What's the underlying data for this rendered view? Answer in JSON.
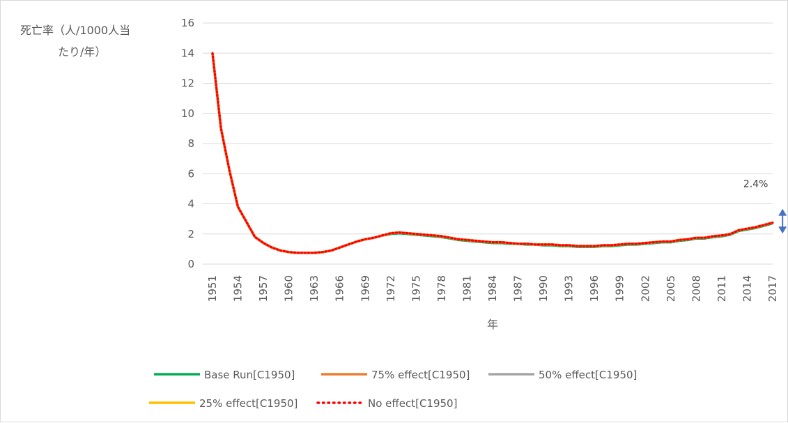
{
  "chart_data": {
    "type": "line",
    "ylabel_lines": [
      "死亡率（人/1000人当",
      "たり/年）"
    ],
    "xlabel": "年",
    "ylim": [
      0,
      16
    ],
    "y_ticks": [
      0,
      2,
      4,
      6,
      8,
      10,
      12,
      14,
      16
    ],
    "x_range": [
      1951,
      2017
    ],
    "x_tick_labels": [
      "1951",
      "1954",
      "1957",
      "1960",
      "1963",
      "1966",
      "1969",
      "1972",
      "1975",
      "1978",
      "1981",
      "1984",
      "1987",
      "1990",
      "1993",
      "1996",
      "1999",
      "2002",
      "2005",
      "2008",
      "2011",
      "2014",
      "2017"
    ],
    "grid": "horizontal",
    "legend_position": "bottom",
    "annotation": {
      "text": "2.4%",
      "x": 2015,
      "y": 5.1
    },
    "range_marker": {
      "x": 2018,
      "y_low": 2.4,
      "y_high": 3.3,
      "color": "#4472c4"
    },
    "x": [
      1951,
      1952,
      1953,
      1954,
      1955,
      1956,
      1957,
      1958,
      1959,
      1960,
      1961,
      1962,
      1963,
      1964,
      1965,
      1966,
      1967,
      1968,
      1969,
      1970,
      1971,
      1972,
      1973,
      1974,
      1975,
      1976,
      1977,
      1978,
      1979,
      1980,
      1981,
      1982,
      1983,
      1984,
      1985,
      1986,
      1987,
      1988,
      1989,
      1990,
      1991,
      1992,
      1993,
      1994,
      1995,
      1996,
      1997,
      1998,
      1999,
      2000,
      2001,
      2002,
      2003,
      2004,
      2005,
      2006,
      2007,
      2008,
      2009,
      2010,
      2011,
      2012,
      2013,
      2014,
      2015,
      2016,
      2017
    ],
    "series": [
      {
        "name": "Base Run[C1950]",
        "color": "#00b050",
        "style": "solid",
        "values": [
          14.0,
          9.0,
          6.2,
          3.8,
          2.8,
          1.8,
          1.4,
          1.1,
          0.9,
          0.8,
          0.75,
          0.75,
          0.75,
          0.8,
          0.9,
          1.1,
          1.3,
          1.5,
          1.65,
          1.75,
          1.9,
          2.0,
          2.05,
          2.0,
          1.95,
          1.9,
          1.85,
          1.8,
          1.7,
          1.6,
          1.55,
          1.5,
          1.45,
          1.4,
          1.4,
          1.35,
          1.35,
          1.3,
          1.3,
          1.25,
          1.25,
          1.2,
          1.2,
          1.15,
          1.15,
          1.15,
          1.2,
          1.2,
          1.25,
          1.3,
          1.3,
          1.35,
          1.4,
          1.45,
          1.45,
          1.55,
          1.6,
          1.7,
          1.7,
          1.8,
          1.85,
          1.95,
          2.2,
          2.3,
          2.4,
          2.55,
          2.7
        ]
      },
      {
        "name": "75% effect[C1950]",
        "color": "#ed7d31",
        "style": "solid",
        "values": [
          14.0,
          9.0,
          6.2,
          3.8,
          2.8,
          1.8,
          1.4,
          1.1,
          0.9,
          0.8,
          0.75,
          0.75,
          0.75,
          0.8,
          0.9,
          1.1,
          1.3,
          1.5,
          1.65,
          1.75,
          1.9,
          2.05,
          2.1,
          2.05,
          2.0,
          1.95,
          1.9,
          1.85,
          1.75,
          1.65,
          1.6,
          1.55,
          1.5,
          1.45,
          1.45,
          1.4,
          1.35,
          1.35,
          1.3,
          1.3,
          1.3,
          1.25,
          1.25,
          1.2,
          1.2,
          1.2,
          1.25,
          1.25,
          1.3,
          1.35,
          1.35,
          1.4,
          1.45,
          1.5,
          1.5,
          1.6,
          1.65,
          1.75,
          1.75,
          1.85,
          1.9,
          2.0,
          2.25,
          2.35,
          2.45,
          2.6,
          2.75
        ]
      },
      {
        "name": "50% effect[C1950]",
        "color": "#a5a5a5",
        "style": "solid",
        "values": [
          14.0,
          9.0,
          6.2,
          3.8,
          2.8,
          1.8,
          1.4,
          1.1,
          0.9,
          0.8,
          0.75,
          0.75,
          0.75,
          0.8,
          0.9,
          1.1,
          1.3,
          1.5,
          1.65,
          1.75,
          1.9,
          2.05,
          2.1,
          2.05,
          2.0,
          1.95,
          1.9,
          1.85,
          1.75,
          1.65,
          1.6,
          1.55,
          1.5,
          1.45,
          1.45,
          1.4,
          1.35,
          1.35,
          1.3,
          1.3,
          1.3,
          1.25,
          1.25,
          1.2,
          1.2,
          1.2,
          1.25,
          1.25,
          1.3,
          1.35,
          1.35,
          1.4,
          1.45,
          1.5,
          1.5,
          1.6,
          1.65,
          1.75,
          1.75,
          1.85,
          1.9,
          2.0,
          2.25,
          2.35,
          2.45,
          2.6,
          2.75
        ]
      },
      {
        "name": "25% effect[C1950]",
        "color": "#ffc000",
        "style": "solid",
        "values": [
          14.0,
          9.0,
          6.2,
          3.8,
          2.8,
          1.8,
          1.4,
          1.1,
          0.9,
          0.8,
          0.75,
          0.75,
          0.75,
          0.8,
          0.9,
          1.1,
          1.3,
          1.5,
          1.65,
          1.75,
          1.9,
          2.05,
          2.1,
          2.05,
          2.0,
          1.95,
          1.9,
          1.85,
          1.75,
          1.65,
          1.6,
          1.55,
          1.5,
          1.45,
          1.45,
          1.4,
          1.35,
          1.35,
          1.3,
          1.3,
          1.3,
          1.25,
          1.25,
          1.2,
          1.2,
          1.2,
          1.25,
          1.25,
          1.3,
          1.35,
          1.35,
          1.4,
          1.45,
          1.5,
          1.5,
          1.6,
          1.65,
          1.75,
          1.75,
          1.85,
          1.9,
          2.0,
          2.25,
          2.35,
          2.45,
          2.6,
          2.75
        ]
      },
      {
        "name": "No effect[C1950]",
        "color": "#ff0000",
        "style": "dotted",
        "values": [
          14.0,
          9.0,
          6.2,
          3.8,
          2.8,
          1.8,
          1.4,
          1.1,
          0.9,
          0.8,
          0.75,
          0.75,
          0.75,
          0.8,
          0.9,
          1.1,
          1.3,
          1.5,
          1.65,
          1.75,
          1.9,
          2.05,
          2.1,
          2.05,
          2.0,
          1.95,
          1.9,
          1.85,
          1.75,
          1.65,
          1.6,
          1.55,
          1.5,
          1.45,
          1.45,
          1.4,
          1.35,
          1.35,
          1.3,
          1.3,
          1.3,
          1.25,
          1.25,
          1.2,
          1.2,
          1.2,
          1.25,
          1.25,
          1.3,
          1.35,
          1.35,
          1.4,
          1.45,
          1.5,
          1.5,
          1.6,
          1.65,
          1.75,
          1.75,
          1.85,
          1.9,
          2.0,
          2.25,
          2.35,
          2.45,
          2.6,
          2.75
        ]
      }
    ]
  }
}
